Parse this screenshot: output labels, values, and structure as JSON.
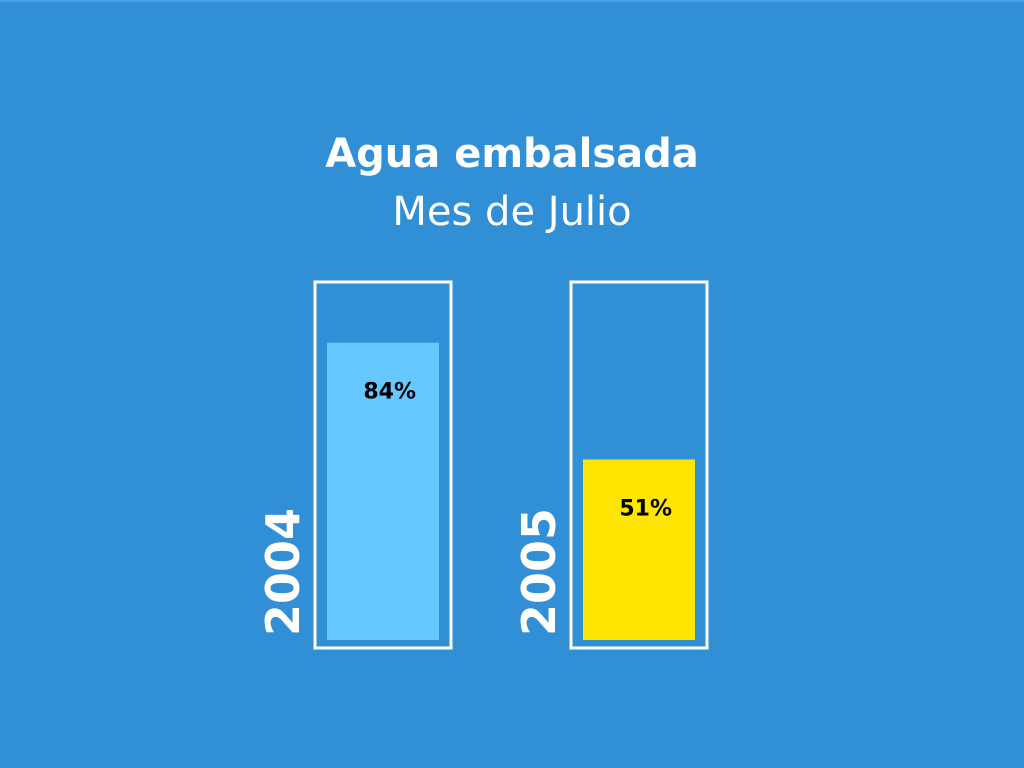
{
  "chart_data": {
    "type": "bar",
    "title": "Agua embalsada",
    "subtitle": "Mes de Julio",
    "categories": [
      "2004",
      "2005"
    ],
    "values": [
      84,
      51
    ],
    "value_labels": [
      "84%",
      "51%"
    ],
    "unit": "%",
    "ylim": [
      0,
      100
    ],
    "colors": [
      "#66c8ff",
      "#ffe500"
    ],
    "container_color": "#ffffff",
    "background": "#318fd5",
    "grid": false,
    "legend": "none"
  }
}
